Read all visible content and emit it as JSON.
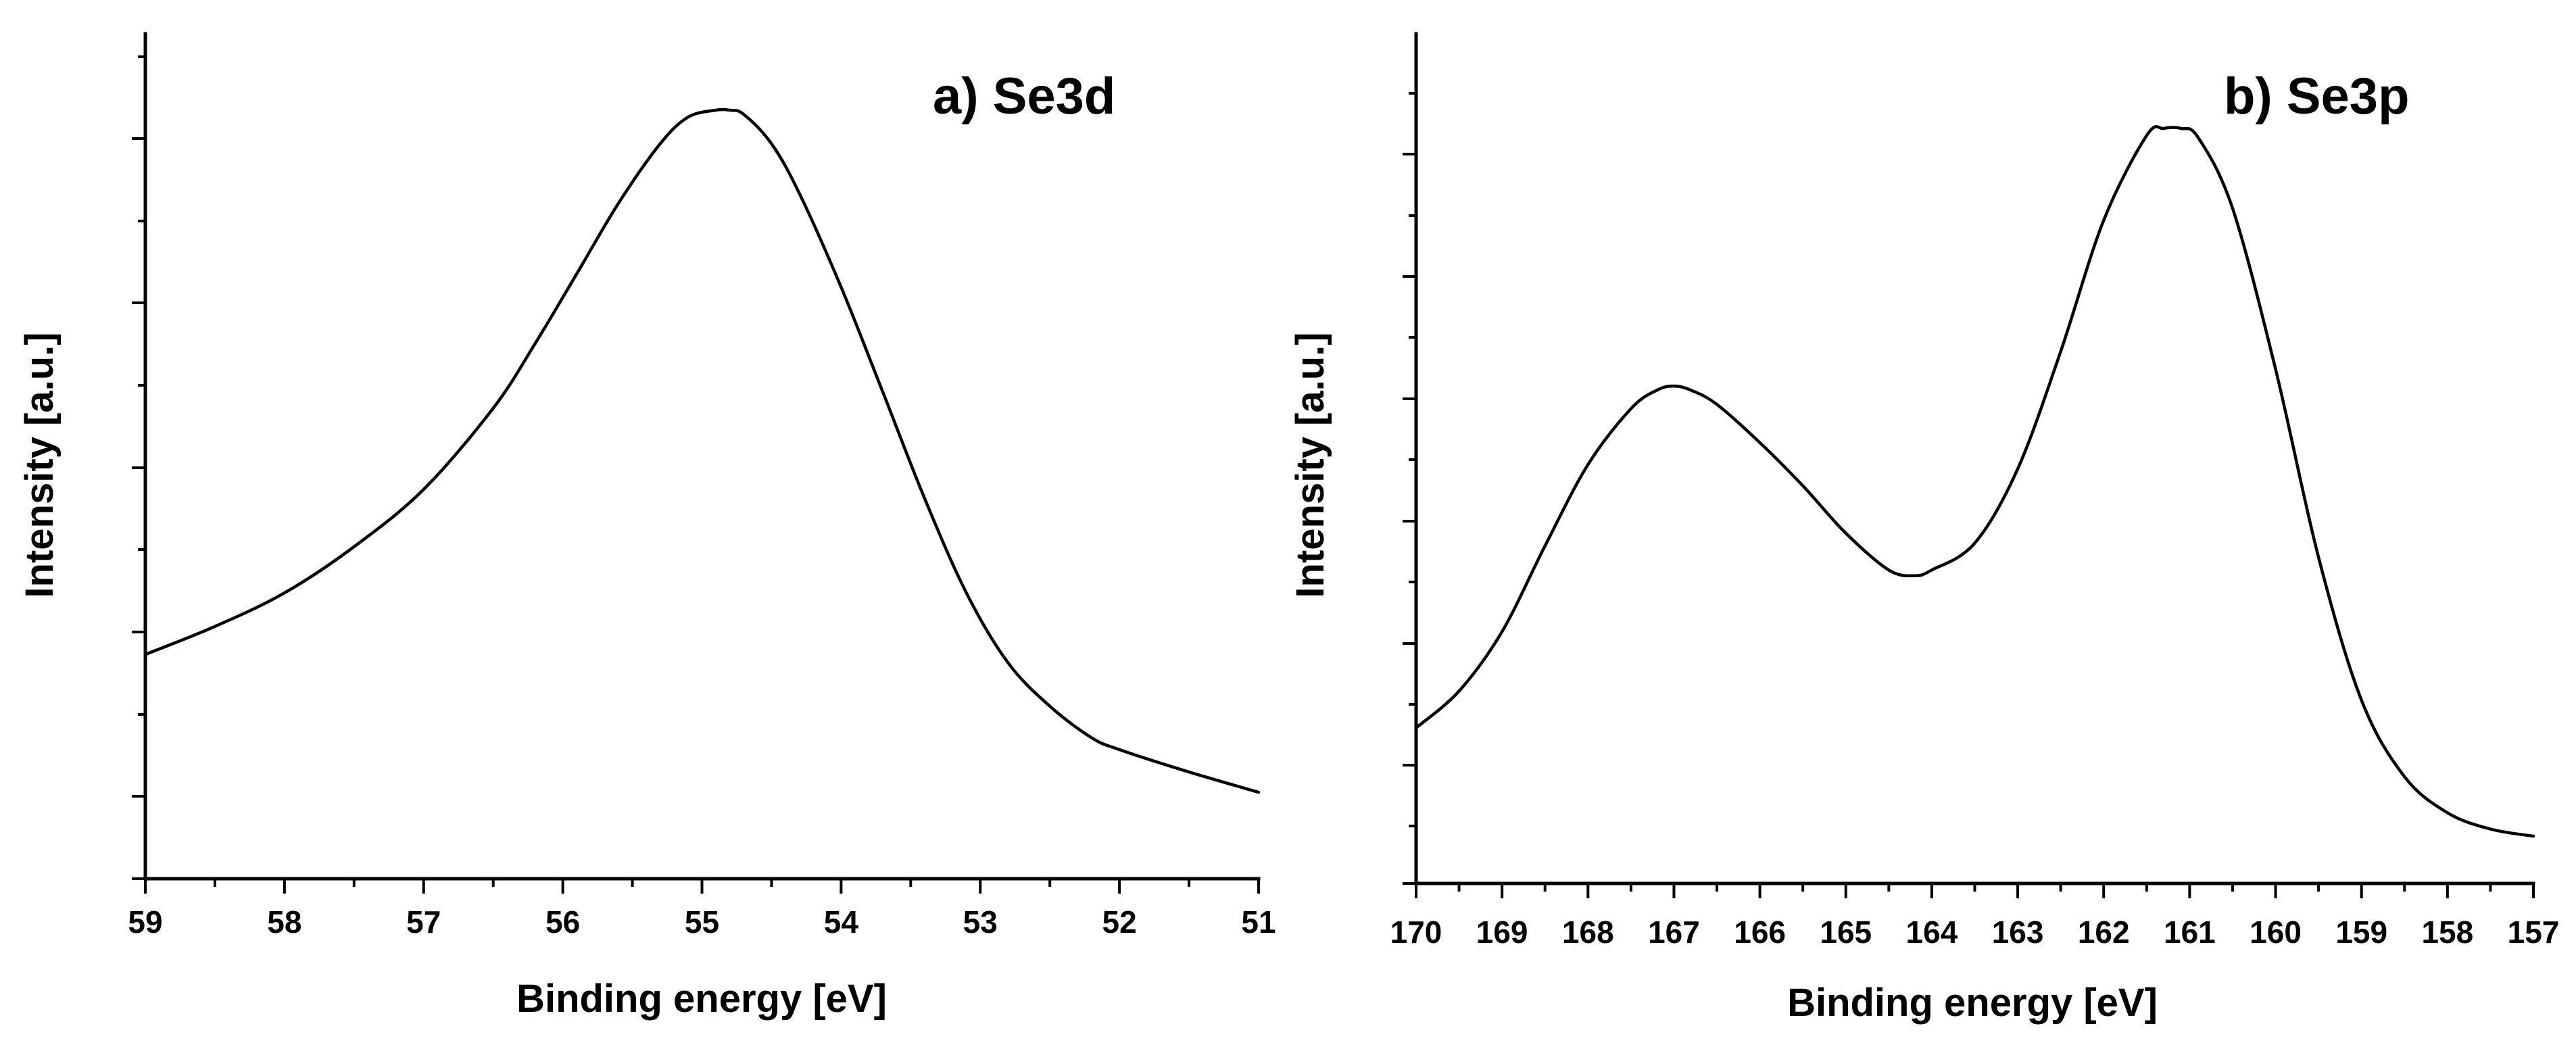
{
  "chart_data": [
    {
      "type": "line",
      "title": "a) Se3d",
      "xlabel": "Binding energy [eV]",
      "ylabel": "Intensity [a.u.]",
      "xlim": [
        59,
        51
      ],
      "x_reversed": true,
      "ylim": [
        0,
        1
      ],
      "y_tick_labels_shown": false,
      "x_ticks": [
        59,
        58,
        57,
        56,
        55,
        54,
        53,
        52,
        51
      ],
      "x_tick_labels": [
        "59",
        "58",
        "57",
        "56",
        "55",
        "54",
        "53",
        "52",
        "51"
      ],
      "series": [
        {
          "name": "Se3d",
          "x": [
            59.0,
            58.5,
            58.0,
            57.5,
            57.0,
            56.5,
            56.2,
            55.9,
            55.6,
            55.3,
            55.1,
            54.9,
            54.8,
            54.7,
            54.5,
            54.3,
            54.0,
            53.7,
            53.4,
            53.1,
            52.8,
            52.5,
            52.2,
            52.0,
            51.5,
            51.0
          ],
          "y": [
            0.222,
            0.262,
            0.31,
            0.376,
            0.458,
            0.574,
            0.666,
            0.766,
            0.867,
            0.952,
            0.99,
            1.0,
            1.0,
            0.994,
            0.952,
            0.881,
            0.747,
            0.597,
            0.445,
            0.31,
            0.21,
            0.148,
            0.103,
            0.086,
            0.054,
            0.025
          ]
        }
      ]
    },
    {
      "type": "line",
      "title": "b) Se3p",
      "xlabel": "Binding energy [eV]",
      "ylabel": "Intensity [a.u.]",
      "xlim": [
        170,
        157
      ],
      "x_reversed": true,
      "ylim": [
        0,
        1
      ],
      "y_tick_labels_shown": false,
      "x_ticks": [
        170,
        169,
        168,
        167,
        166,
        165,
        164,
        163,
        162,
        161,
        160,
        159,
        158,
        157
      ],
      "x_tick_labels": [
        "170",
        "169",
        "168",
        "167",
        "166",
        "165",
        "164",
        "163",
        "162",
        "161",
        "160",
        "159",
        "158",
        "157"
      ],
      "series": [
        {
          "name": "Se3p",
          "x": [
            170.0,
            169.5,
            169.0,
            168.5,
            168.0,
            167.5,
            167.2,
            167.0,
            166.8,
            166.5,
            166.0,
            165.5,
            165.0,
            164.5,
            164.2,
            164.0,
            163.5,
            163.0,
            162.5,
            162.0,
            161.5,
            161.3,
            161.1,
            160.9,
            160.5,
            160.0,
            159.5,
            159.0,
            158.5,
            158.0,
            157.5,
            157.0
          ],
          "y": [
            0.153,
            0.205,
            0.289,
            0.41,
            0.525,
            0.604,
            0.63,
            0.636,
            0.63,
            0.61,
            0.556,
            0.495,
            0.428,
            0.376,
            0.368,
            0.376,
            0.414,
            0.519,
            0.685,
            0.87,
            0.99,
            1.0,
            1.0,
            0.987,
            0.887,
            0.66,
            0.394,
            0.192,
            0.084,
            0.033,
            0.01,
            0.0
          ]
        }
      ]
    }
  ]
}
